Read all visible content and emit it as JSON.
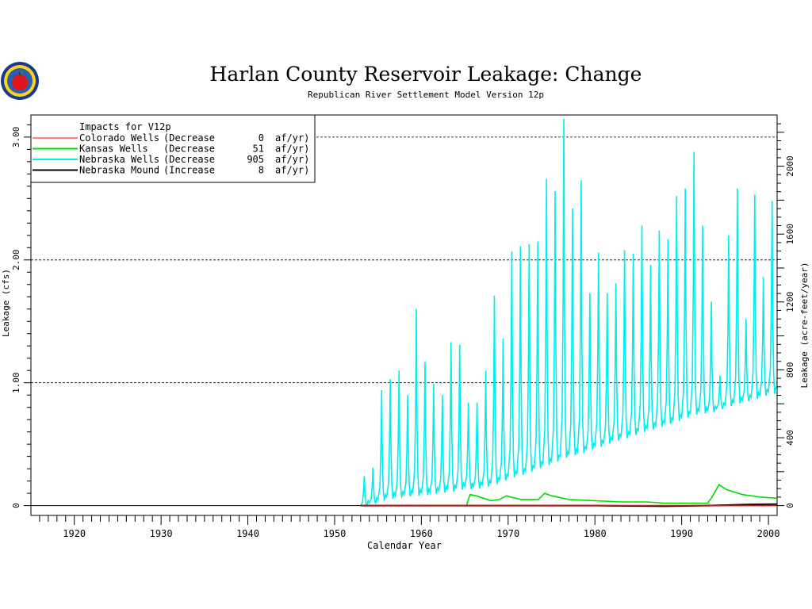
{
  "chart_data": {
    "type": "line",
    "title": "Harlan County Reservoir Leakage: Change",
    "subtitle": "Republican River Settlement Model Version 12p",
    "xlabel": "Calendar Year",
    "ylabel": "Leakage (cfs)",
    "y2label": "Leakage (acre-feet/year)",
    "xlim": [
      1915,
      2001
    ],
    "ylim": [
      -0.08,
      3.18
    ],
    "y2lim": [
      -58,
      2302
    ],
    "x_ticks": [
      "1920",
      "1930",
      "1940",
      "1950",
      "1960",
      "1970",
      "1980",
      "1990",
      "2000"
    ],
    "y_ticks": [
      "0",
      "1.00",
      "2.00",
      "3.00"
    ],
    "y2_ticks": [
      "0",
      "400",
      "800",
      "1200",
      "1600",
      "2000"
    ],
    "grid": "dashed horizontal at 1.00, 2.00, 3.00",
    "legend": {
      "placement": "top-left",
      "title": "Impacts for V12p",
      "entries": [
        {
          "name": "Colorado Wells",
          "dir": "(Decrease",
          "value": "0",
          "unit": "af/yr)",
          "color": "#ff0000"
        },
        {
          "name": "Kansas Wells",
          "dir": "(Decrease",
          "value": "51",
          "unit": "af/yr)",
          "color": "#00dd00"
        },
        {
          "name": "Nebraska Wells",
          "dir": "(Decrease",
          "value": "905",
          "unit": "af/yr)",
          "color": "#00eeee"
        },
        {
          "name": "Nebraska Mound",
          "dir": "(Increase",
          "value": "8",
          "unit": "af/yr)",
          "color": "#000000"
        }
      ]
    },
    "series": [
      {
        "name": "Nebraska Wells",
        "color": "#00eeee",
        "note": "monthly series with annual spikes; peak/base values (cfs) per year",
        "years": [
          1953,
          1954,
          1955,
          1956,
          1957,
          1958,
          1959,
          1960,
          1961,
          1962,
          1963,
          1964,
          1965,
          1966,
          1967,
          1968,
          1969,
          1970,
          1971,
          1972,
          1973,
          1974,
          1975,
          1976,
          1977,
          1978,
          1979,
          1980,
          1981,
          1982,
          1983,
          1984,
          1985,
          1986,
          1987,
          1988,
          1989,
          1990,
          1991,
          1992,
          1993,
          1994,
          1995,
          1996,
          1997,
          1998,
          1999,
          2000
        ],
        "peaks": [
          0.24,
          0.31,
          0.94,
          1.03,
          1.1,
          0.9,
          1.6,
          1.17,
          0.99,
          0.9,
          1.33,
          1.31,
          0.84,
          0.84,
          1.1,
          1.71,
          1.36,
          2.07,
          2.11,
          2.13,
          2.15,
          2.66,
          2.56,
          3.15,
          2.42,
          2.65,
          1.73,
          2.06,
          1.73,
          1.81,
          2.08,
          2.05,
          2.28,
          1.96,
          2.24,
          2.17,
          2.52,
          2.58,
          2.88,
          2.28,
          1.66,
          1.06,
          2.2,
          2.58,
          1.52,
          2.53,
          1.86,
          2.48
        ],
        "bases": [
          0.0,
          0.02,
          0.05,
          0.07,
          0.08,
          0.09,
          0.1,
          0.1,
          0.11,
          0.12,
          0.13,
          0.14,
          0.16,
          0.15,
          0.17,
          0.18,
          0.21,
          0.24,
          0.26,
          0.28,
          0.31,
          0.34,
          0.36,
          0.4,
          0.42,
          0.44,
          0.46,
          0.49,
          0.51,
          0.54,
          0.56,
          0.58,
          0.61,
          0.63,
          0.65,
          0.67,
          0.7,
          0.72,
          0.75,
          0.77,
          0.77,
          0.79,
          0.82,
          0.84,
          0.86,
          0.88,
          0.9,
          0.93
        ]
      },
      {
        "name": "Kansas Wells",
        "color": "#00dd00",
        "x": [
          1953.0,
          1965.2,
          1965.6,
          1966.3,
          1968.0,
          1969.0,
          1969.8,
          1970.3,
          1971.5,
          1973.5,
          1974.2,
          1975.0,
          1977.0,
          1980.0,
          1983.0,
          1986.0,
          1988.0,
          1990.0,
          1993.0,
          1993.5,
          1994.3,
          1995.2,
          1997.0,
          1999.0,
          2001.0
        ],
        "y": [
          0.0,
          0.0,
          0.09,
          0.08,
          0.04,
          0.05,
          0.08,
          0.07,
          0.05,
          0.05,
          0.1,
          0.08,
          0.05,
          0.04,
          0.03,
          0.03,
          0.02,
          0.02,
          0.02,
          0.07,
          0.17,
          0.13,
          0.09,
          0.07,
          0.06
        ]
      },
      {
        "name": "Nebraska Mound",
        "color": "#000000",
        "x": [
          1953.0,
          1980.0,
          1988.0,
          1993.0,
          1998.0,
          2001.0
        ],
        "y": [
          0.0,
          0.0,
          -0.005,
          0.0,
          0.01,
          0.012
        ]
      },
      {
        "name": "Colorado Wells",
        "color": "#ff0000",
        "x": [
          1953.0,
          2001.0
        ],
        "y": [
          0.0,
          0.0
        ]
      }
    ]
  }
}
